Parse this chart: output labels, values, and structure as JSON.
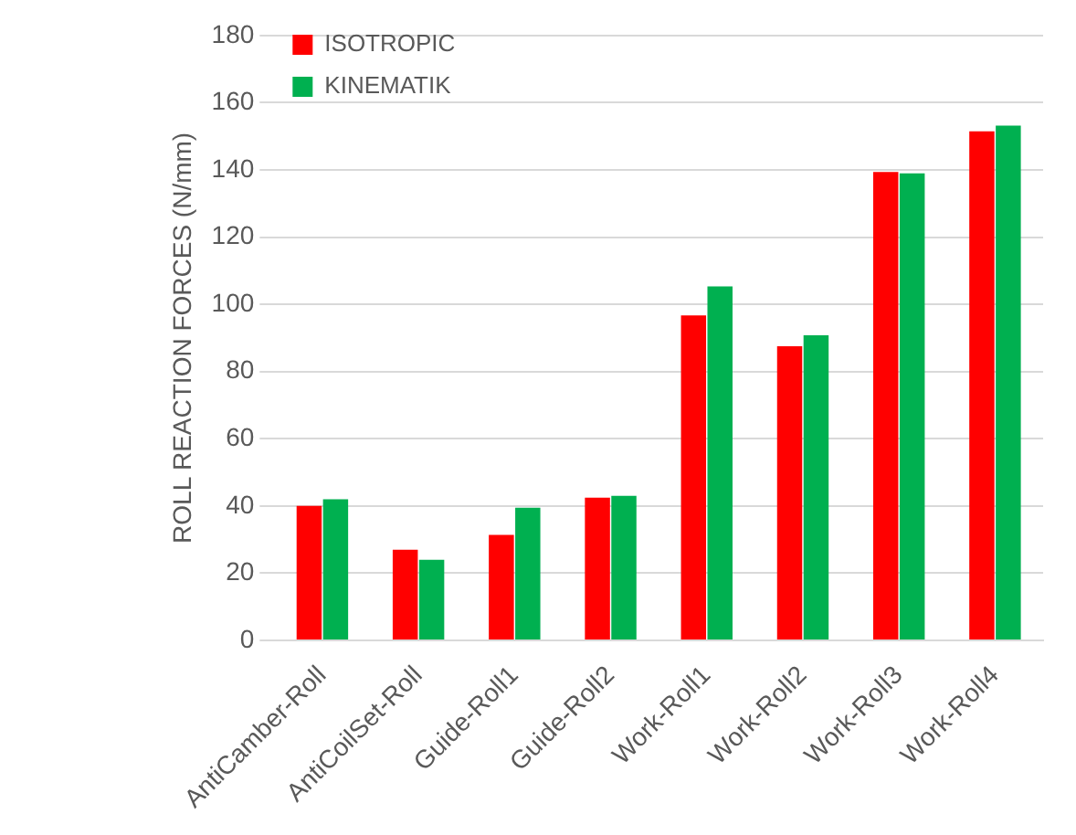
{
  "chart_data": {
    "type": "bar",
    "ylabel": "ROLL REACTION FORCES (N/mm)",
    "categories": [
      "AntiCamber-Roll",
      "AntiCoilSet-Roll",
      "Guide-Roll1",
      "Guide-Roll2",
      "Work-Roll1",
      "Work-Roll2",
      "Work-Roll3",
      "Work-Roll4"
    ],
    "series": [
      {
        "name": "ISOTROPIC",
        "color": "#ff0000",
        "values": [
          40,
          27,
          31.4,
          42.5,
          96.7,
          87.5,
          139.4,
          151.5
        ]
      },
      {
        "name": "KINEMATIK",
        "color": "#00b050",
        "values": [
          42,
          24,
          39.5,
          43,
          105.3,
          90.8,
          139,
          153.2
        ]
      }
    ],
    "ylim": [
      0,
      180
    ],
    "yticks": [
      0,
      20,
      40,
      60,
      80,
      100,
      120,
      140,
      160,
      180
    ],
    "grid": "y",
    "legend": "top left"
  }
}
